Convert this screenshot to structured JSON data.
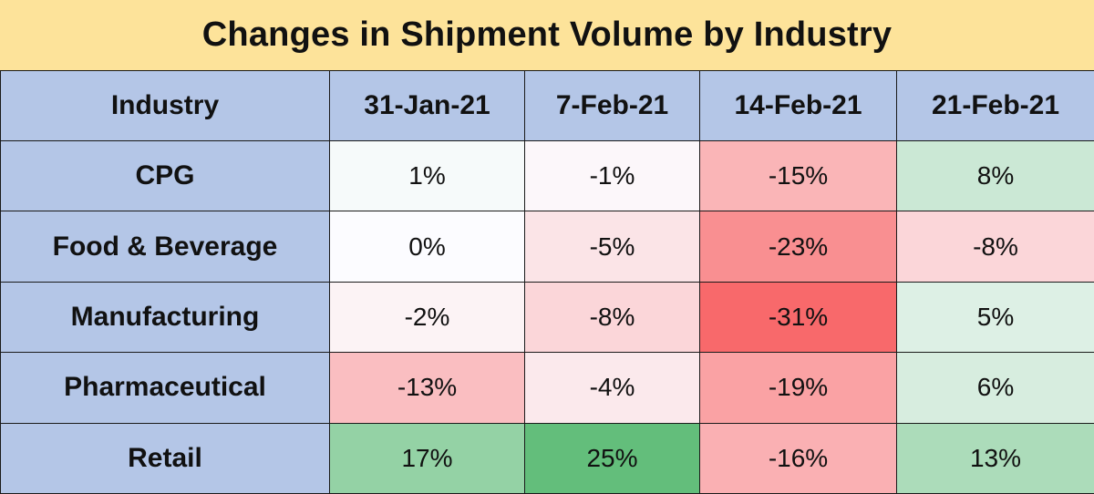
{
  "chart_data": {
    "type": "table",
    "title": "Changes in Shipment Volume by Industry",
    "header_label": "Industry",
    "columns": [
      "31-Jan-21",
      "7-Feb-21",
      "14-Feb-21",
      "21-Feb-21"
    ],
    "rows": [
      {
        "label": "CPG",
        "values": [
          1,
          -1,
          -15,
          8
        ],
        "display": [
          "1%",
          "-1%",
          "-15%",
          "8%"
        ]
      },
      {
        "label": "Food & Beverage",
        "values": [
          0,
          -5,
          -23,
          -8
        ],
        "display": [
          "0%",
          "-5%",
          "-23%",
          "-8%"
        ]
      },
      {
        "label": "Manufacturing",
        "values": [
          -2,
          -8,
          -31,
          5
        ],
        "display": [
          "-2%",
          "-8%",
          "-31%",
          "5%"
        ]
      },
      {
        "label": "Pharmaceutical",
        "values": [
          -13,
          -4,
          -19,
          6
        ],
        "display": [
          "-13%",
          "-4%",
          "-19%",
          "6%"
        ]
      },
      {
        "label": "Retail",
        "values": [
          17,
          25,
          -16,
          13
        ],
        "display": [
          "17%",
          "25%",
          "-16%",
          "13%"
        ]
      }
    ],
    "colors": {
      "title_background": "#fde39a",
      "header_background": "#b4c6e7",
      "scale_min": "#f8696b",
      "scale_mid": "#fcfcff",
      "scale_max": "#63be7b"
    }
  }
}
